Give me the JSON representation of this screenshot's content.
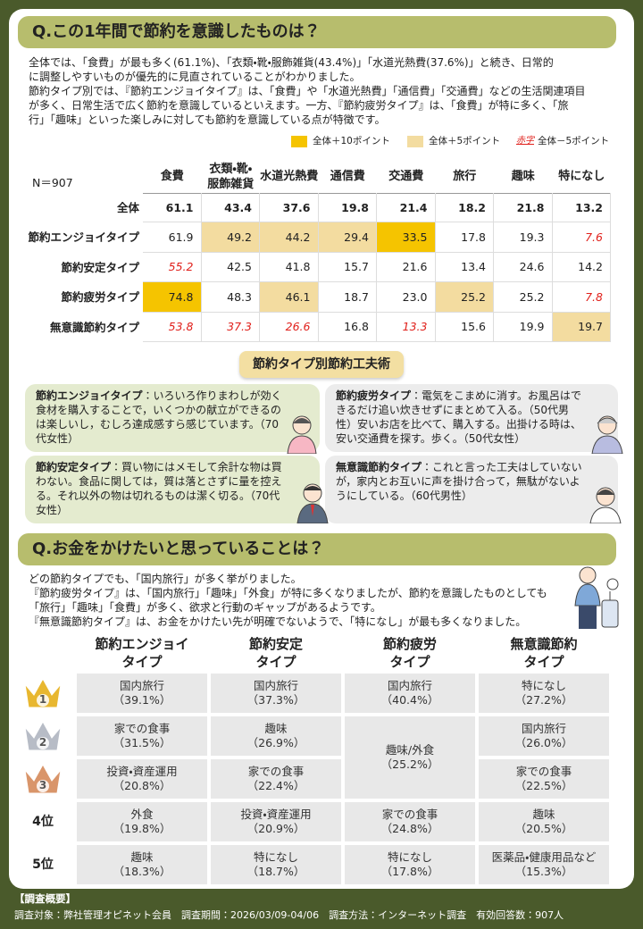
{
  "section1": {
    "title": "Q.この1年間で節約を意識したものは？",
    "intro": [
      "全体では、「食費」が最も多く(61.1%)、「衣類・靴・服飾雑貨(43.4%)」「水道光熱費(37.6%)」と続き、日常的",
      "に調整しやすいものが優先的に見直されていることがわかりました。",
      "節約タイプ別では、『節約エンジョイタイプ』は、「食費」や「水道光熱費」「通信費」「交通費」などの生活関連項目",
      "が多く、日常生活で広く節約を意識しているといえます。一方、『節約疲労タイプ』は、「食費」が特に多く、「旅",
      "行」「趣味」といった楽しみに対しても節約を意識している点が特徴です。"
    ],
    "legend": [
      {
        "label": "全体＋10ポイント",
        "style": "high10"
      },
      {
        "label": "全体＋5ポイント",
        "style": "high5"
      },
      {
        "swatch": "赤字",
        "label": "全体－5ポイント",
        "style": "low5"
      }
    ],
    "table": {
      "n": "N＝907",
      "headers": [
        [
          "食費"
        ],
        [
          "衣類・靴・",
          "服飾雑貨"
        ],
        [
          "水道光熱費"
        ],
        [
          "通信費"
        ],
        [
          "交通費"
        ],
        [
          "旅行"
        ],
        [
          "趣味"
        ],
        [
          "特になし"
        ]
      ],
      "rows": [
        {
          "label": "全体",
          "bold": true,
          "values": [
            "61.1",
            "43.4",
            "37.6",
            "19.8",
            "21.4",
            "18.2",
            "21.8",
            "13.2"
          ],
          "styles": [
            null,
            null,
            null,
            null,
            null,
            null,
            null,
            null
          ]
        },
        {
          "label": "節約エンジョイタイプ",
          "values": [
            "61.9",
            "49.2",
            "44.2",
            "29.4",
            "33.5",
            "17.8",
            "19.3",
            "7.6"
          ],
          "styles": [
            null,
            "high5",
            "high5",
            "high5",
            "high10",
            null,
            null,
            "low5"
          ]
        },
        {
          "label": "節約安定タイプ",
          "values": [
            "55.2",
            "42.5",
            "41.8",
            "15.7",
            "21.6",
            "13.4",
            "24.6",
            "14.2"
          ],
          "styles": [
            "low5",
            null,
            null,
            null,
            null,
            null,
            null,
            null
          ]
        },
        {
          "label": "節約疲労タイプ",
          "values": [
            "74.8",
            "48.3",
            "46.1",
            "18.7",
            "23.0",
            "25.2",
            "25.2",
            "7.8"
          ],
          "styles": [
            "high10",
            null,
            "high5",
            null,
            null,
            "high5",
            null,
            "low5"
          ]
        },
        {
          "label": "無意識節約タイプ",
          "values": [
            "53.8",
            "37.3",
            "26.6",
            "16.8",
            "13.3",
            "15.6",
            "19.9",
            "19.7"
          ],
          "styles": [
            "low5",
            "low5",
            "low5",
            null,
            "low5",
            null,
            null,
            "high5"
          ]
        }
      ]
    },
    "tips": {
      "title": "節約タイプ別節約工夫術",
      "items": [
        {
          "type": "節約エンジョイタイプ",
          "text": "：いろいろ作りまわしが効く食材を購入することで，いくつかの献立ができるのは楽しいし，むしろ達成感すら感じています。（70代女性）",
          "tone": "green"
        },
        {
          "type": "節約疲労タイプ",
          "text": "：電気をこまめに消す。お風呂はできるだけ追い炊きせずにまとめて入る。（50代男性）安いお店を比べて、購入する。出掛ける時は、安い交通費を探す。歩く。（50代女性）",
          "tone": "grey"
        },
        {
          "type": "節約安定タイプ",
          "text": "：買い物にはメモして余計な物は買わない。食品に関しては，質は落とさずに量を控える。それ以外の物は切れるものは潔く切る。（70代女性）",
          "tone": "green"
        },
        {
          "type": "無意識節約タイプ",
          "text": "：これと言った工夫はしていないが，家内とお互いに声を掛け合って，無駄がないようにしている。（60代男性）",
          "tone": "grey"
        }
      ]
    }
  },
  "section2": {
    "title": "Q.お金をかけたいと思っていることは？",
    "intro": [
      "どの節約タイプでも、「国内旅行」が多く挙がりました。",
      "『節約疲労タイプ』は、「国内旅行」「趣味」「外食」が特に多くなりましたが、節約を意識したものとしても",
      "「旅行」「趣味」「食費」が多く、欲求と行動のギャップがあるようです。",
      "『無意識節約タイプ』は、お金をかけたい先が明確でないようで、「特になし」が最も多くなりました。"
    ],
    "ranking": {
      "ranks": [
        "1",
        "2",
        "3",
        "4位",
        "5位"
      ],
      "columns": [
        {
          "header": [
            "節約エンジョイ",
            "タイプ"
          ],
          "entries": [
            {
              "name": "国内旅行",
              "pct": "（39.1%）"
            },
            {
              "name": "家での食事",
              "pct": "（31.5%）"
            },
            {
              "name": "投資・資産運用",
              "pct": "（20.8%）"
            },
            {
              "name": "外食",
              "pct": "（19.8%）"
            },
            {
              "name": "趣味",
              "pct": "（18.3%）"
            }
          ]
        },
        {
          "header": [
            "節約安定",
            "タイプ"
          ],
          "entries": [
            {
              "name": "国内旅行",
              "pct": "（37.3%）"
            },
            {
              "name": "趣味",
              "pct": "（26.9%）"
            },
            {
              "name": "家での食事",
              "pct": "（22.4%）"
            },
            {
              "name": "投資・資産運用",
              "pct": "（20.9%）"
            },
            {
              "name": "特になし",
              "pct": "（18.7%）"
            }
          ]
        },
        {
          "header": [
            "節約疲労",
            "タイプ"
          ],
          "entries": [
            {
              "name": "国内旅行",
              "pct": "（40.4%）"
            },
            {
              "name": "趣味/外食",
              "pct": "（25.2%）",
              "span": 2
            },
            {
              "name": "家での食事",
              "pct": "（24.8%）"
            },
            {
              "name": "特になし",
              "pct": "（17.8%）"
            }
          ]
        },
        {
          "header": [
            "無意識節約",
            "タイプ"
          ],
          "entries": [
            {
              "name": "特になし",
              "pct": "（27.2%）"
            },
            {
              "name": "国内旅行",
              "pct": "（26.0%）"
            },
            {
              "name": "家での食事",
              "pct": "（22.5%）"
            },
            {
              "name": "趣味",
              "pct": "（20.5%）"
            },
            {
              "name": "医薬品・健康用品など",
              "pct": "（15.3%）"
            }
          ]
        }
      ]
    }
  },
  "footer": {
    "heading": "【調査概要】",
    "text": "調査対象：弊社管理オピネット会員　調査期間：2026/03/09-04/06　調査方法：インターネット調査　有効回答数：907人"
  }
}
